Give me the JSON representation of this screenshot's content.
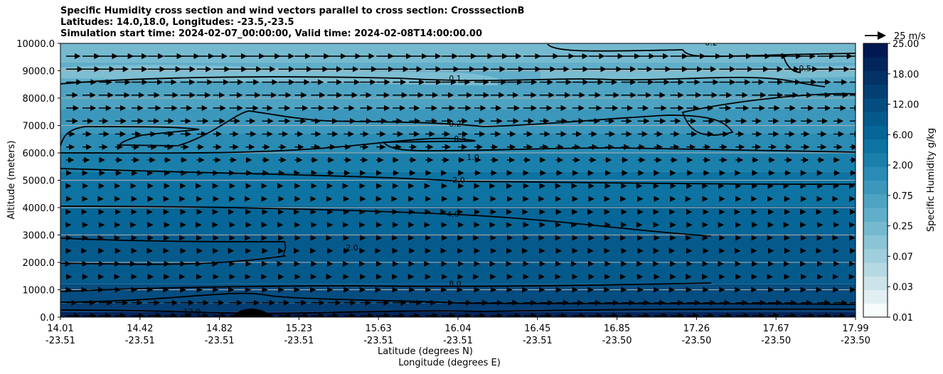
{
  "chart_data": {
    "type": "contourf",
    "title_lines": [
      "Specific Humidity cross section and wind vectors parallel to cross section: CrosssectionB",
      "Latitudes: 14.0,18.0, Longitudes: -23.5,-23.5",
      "Simulation start time: 2024-02-07_00:00:00, Valid time: 2024-02-08T14:00:00.00"
    ],
    "ylabel": "Altitude (meters)",
    "xlabel_lat": "Latitude (degrees N)",
    "xlabel_lon": "Longitude (degrees E)",
    "ylim": [
      0,
      10000
    ],
    "y_ticks": [
      "0.0",
      "1000.0",
      "2000.0",
      "3000.0",
      "4000.0",
      "5000.0",
      "6000.0",
      "7000.0",
      "8000.0",
      "9000.0",
      "10000.0"
    ],
    "y_tick_values": [
      0,
      1000,
      2000,
      3000,
      4000,
      5000,
      6000,
      7000,
      8000,
      9000,
      10000
    ],
    "x_ticks_lat": [
      "14.01",
      "14.42",
      "14.82",
      "15.23",
      "15.63",
      "16.04",
      "16.45",
      "16.85",
      "17.26",
      "17.67",
      "17.99"
    ],
    "x_ticks_lon": [
      "-23.51",
      "-23.51",
      "-23.51",
      "-23.51",
      "-23.51",
      "-23.51",
      "-23.51",
      "-23.50",
      "-23.50",
      "-23.50",
      "-23.50"
    ],
    "colorbar": {
      "label": "Specific Humidity g/kg",
      "tick_labels": [
        "0.01",
        "0.03",
        "0.07",
        "0.25",
        "0.75",
        "2.00",
        "6.00",
        "12.00",
        "18.00",
        "25.00"
      ],
      "colors": [
        "#f7fbfc",
        "#e1eff2",
        "#cbe4ea",
        "#b4d9e3",
        "#9fcedc",
        "#8ac4d6",
        "#75b9cf",
        "#60aec9",
        "#4ea3c2",
        "#3b97bb",
        "#2a8cb4",
        "#1a80ab",
        "#0d73a2",
        "#066697",
        "#055a8c",
        "#054d80",
        "#043f74",
        "#033267",
        "#02255b",
        "#011950"
      ]
    },
    "quiver_key": {
      "label": "25 m/s",
      "value": 25
    },
    "contour_lines": [
      {
        "level": "0.2",
        "z": [
          9950
        ]
      },
      {
        "level": "0.5",
        "z": [
          8900
        ]
      },
      {
        "level": "0.1",
        "z": [
          8700
        ]
      },
      {
        "level": "0.2",
        "z": [
          7000
        ]
      },
      {
        "level": "0.5",
        "z": [
          6400
        ]
      },
      {
        "level": "1.0",
        "z": [
          5000
        ]
      },
      {
        "level": "2.0",
        "z": [
          3700
        ]
      },
      {
        "level": "4.0",
        "z": [
          2500
        ]
      },
      {
        "level": "2.0",
        "z": [
          1150
        ]
      },
      {
        "level": "8.0",
        "z": [
          200
        ]
      },
      {
        "level": "12.0",
        "z": [
          120
        ]
      }
    ]
  }
}
